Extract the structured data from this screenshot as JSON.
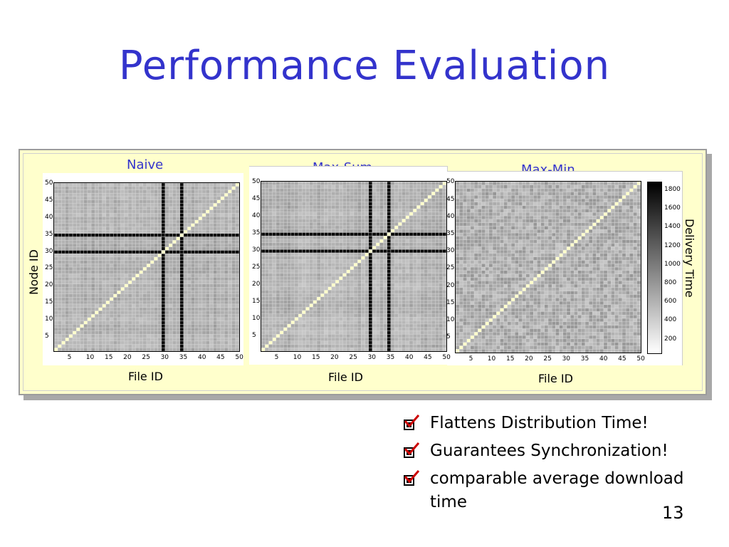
{
  "slide": {
    "title": "Performance Evaluation",
    "page_number": "13"
  },
  "figure": {
    "ylabel": "Node ID",
    "colorbar_label": "Delivery Time",
    "colorbar_ticks": [
      "1800",
      "1600",
      "1400",
      "1200",
      "1000",
      "800",
      "600",
      "400",
      "200"
    ],
    "axis_ticks": [
      "5",
      "10",
      "15",
      "20",
      "25",
      "30",
      "35",
      "40",
      "45",
      "50"
    ]
  },
  "chart_data": [
    {
      "type": "heatmap",
      "title": "Naive",
      "xlabel": "File ID",
      "ylabel": "Node ID",
      "xlim": [
        1,
        50
      ],
      "ylim": [
        1,
        50
      ],
      "dark_columns": [
        30,
        35
      ],
      "dark_rows": [
        30,
        35
      ],
      "diagonal": "light"
    },
    {
      "type": "heatmap",
      "title": "Max-Sum",
      "xlabel": "File ID",
      "ylabel": "",
      "xlim": [
        1,
        50
      ],
      "ylim": [
        1,
        50
      ],
      "dark_columns": [
        30,
        35
      ],
      "dark_rows": [
        30,
        35
      ],
      "diagonal": "light"
    },
    {
      "type": "heatmap",
      "title": "Max-Min",
      "xlabel": "File ID",
      "ylabel": "",
      "xlim": [
        1,
        50
      ],
      "ylim": [
        1,
        50
      ],
      "dark_columns": [],
      "dark_rows": [],
      "diagonal": "light",
      "colorbar": {
        "label": "Delivery Time",
        "range": [
          0,
          1900
        ]
      }
    }
  ],
  "bullets": [
    {
      "text": "Flattens Distribution Time!",
      "icon": "checked-box-icon"
    },
    {
      "text": "Guarantees Synchronization!",
      "icon": "checked-box-icon"
    },
    {
      "text": "comparable average download time",
      "icon": "checked-box-icon"
    }
  ],
  "colors": {
    "title": "#3333cc",
    "panel_bg": "#ffffcc",
    "check": "#cc0000"
  }
}
